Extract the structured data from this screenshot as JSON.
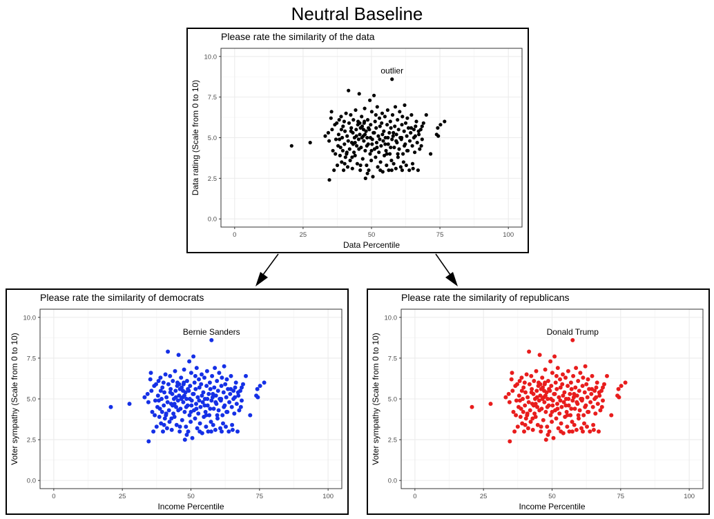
{
  "title": "Neutral Baseline",
  "colors": {
    "top": "#000000",
    "left": "#1530e6",
    "right": "#e81d1d",
    "grid": "#ebebeb"
  },
  "chart_data": [
    {
      "type": "scatter",
      "title": "Please rate the similarity of the data",
      "xlabel": "Data Percentile",
      "ylabel": "Data rating (Scale from 0 to 10)",
      "xlim": [
        -5,
        105
      ],
      "ylim": [
        -0.5,
        10.5
      ],
      "xticks": [
        "0",
        "25",
        "50",
        "75",
        "100"
      ],
      "yticks": [
        "0.0",
        "2.5",
        "5.0",
        "7.5",
        "10.0"
      ],
      "annotation": {
        "text": "outlier",
        "x": 57.5,
        "y": 8.6
      },
      "highlight_point": {
        "x": 57.5,
        "y": 8.6
      },
      "color": "#000000"
    },
    {
      "type": "scatter",
      "title": "Please rate the similarity of democrats",
      "xlabel": "Income Percentile",
      "ylabel": "Voter sympathy (Scale from 0 to 10)",
      "xlim": [
        -5,
        105
      ],
      "ylim": [
        -0.5,
        10.5
      ],
      "xticks": [
        "0",
        "25",
        "50",
        "75",
        "100"
      ],
      "yticks": [
        "0.0",
        "2.5",
        "5.0",
        "7.5",
        "10.0"
      ],
      "annotation": {
        "text": "Bernie Sanders",
        "x": 57.5,
        "y": 8.6
      },
      "highlight_point": {
        "x": 57.5,
        "y": 8.6
      },
      "color": "#1530e6"
    },
    {
      "type": "scatter",
      "title": "Please rate the similarity of republicans",
      "xlabel": "Income Percentile",
      "ylabel": "Voter sympathy (Scale from 0 to 10)",
      "xlim": [
        -5,
        105
      ],
      "ylim": [
        -0.5,
        10.5
      ],
      "xticks": [
        "0",
        "25",
        "50",
        "75",
        "100"
      ],
      "yticks": [
        "0.0",
        "2.5",
        "5.0",
        "7.5",
        "10.0"
      ],
      "annotation": {
        "text": "Donald Trump",
        "x": 57.5,
        "y": 8.6
      },
      "highlight_point": {
        "x": 57.5,
        "y": 8.6
      },
      "color": "#e81d1d"
    }
  ],
  "points": [
    [
      20.8,
      4.5
    ],
    [
      27.6,
      4.7
    ],
    [
      34.6,
      2.4
    ],
    [
      33.1,
      5.1
    ],
    [
      34.2,
      5.3
    ],
    [
      34.5,
      4.8
    ],
    [
      35.2,
      6.2
    ],
    [
      35.4,
      6.6
    ],
    [
      35.6,
      5.5
    ],
    [
      35.9,
      4.2
    ],
    [
      36.3,
      3.0
    ],
    [
      36.6,
      5.8
    ],
    [
      37.0,
      4.9
    ],
    [
      37.3,
      5.9
    ],
    [
      37.5,
      3.3
    ],
    [
      37.8,
      4.5
    ],
    [
      38.0,
      5.2
    ],
    [
      38.2,
      6.1
    ],
    [
      38.5,
      3.9
    ],
    [
      38.7,
      4.4
    ],
    [
      38.9,
      6.3
    ],
    [
      39.1,
      3.5
    ],
    [
      39.3,
      5.0
    ],
    [
      39.5,
      4.2
    ],
    [
      39.6,
      5.7
    ],
    [
      39.8,
      3.0
    ],
    [
      40.0,
      6.0
    ],
    [
      40.1,
      4.6
    ],
    [
      40.3,
      5.4
    ],
    [
      40.5,
      3.8
    ],
    [
      40.7,
      6.5
    ],
    [
      40.9,
      4.0
    ],
    [
      41.1,
      5.1
    ],
    [
      41.3,
      3.2
    ],
    [
      41.5,
      4.8
    ],
    [
      41.6,
      7.9
    ],
    [
      41.8,
      5.9
    ],
    [
      42.0,
      4.3
    ],
    [
      42.2,
      3.6
    ],
    [
      42.4,
      6.4
    ],
    [
      42.6,
      5.6
    ],
    [
      42.8,
      4.7
    ],
    [
      43.0,
      3.1
    ],
    [
      43.2,
      5.3
    ],
    [
      43.4,
      6.1
    ],
    [
      43.6,
      4.1
    ],
    [
      43.8,
      5.0
    ],
    [
      44.0,
      3.9
    ],
    [
      44.2,
      6.7
    ],
    [
      44.4,
      5.5
    ],
    [
      44.6,
      4.5
    ],
    [
      44.8,
      3.4
    ],
    [
      45.0,
      5.8
    ],
    [
      45.1,
      6.0
    ],
    [
      45.3,
      4.9
    ],
    [
      45.5,
      7.7
    ],
    [
      45.7,
      5.2
    ],
    [
      45.9,
      3.0
    ],
    [
      46.0,
      5.6
    ],
    [
      46.2,
      4.4
    ],
    [
      46.4,
      6.3
    ],
    [
      46.6,
      5.7
    ],
    [
      46.8,
      3.7
    ],
    [
      47.0,
      5.1
    ],
    [
      47.2,
      4.8
    ],
    [
      47.3,
      5.9
    ],
    [
      47.5,
      6.8
    ],
    [
      47.7,
      4.2
    ],
    [
      47.8,
      2.5
    ],
    [
      48.0,
      5.4
    ],
    [
      48.2,
      3.3
    ],
    [
      48.4,
      5.0
    ],
    [
      48.6,
      6.1
    ],
    [
      48.8,
      4.6
    ],
    [
      49.0,
      3.0
    ],
    [
      49.2,
      5.5
    ],
    [
      49.4,
      7.3
    ],
    [
      49.5,
      4.0
    ],
    [
      49.7,
      5.8
    ],
    [
      49.9,
      3.6
    ],
    [
      50.1,
      6.6
    ],
    [
      50.3,
      4.9
    ],
    [
      50.5,
      2.6
    ],
    [
      50.7,
      5.3
    ],
    [
      50.9,
      7.6
    ],
    [
      51.1,
      4.3
    ],
    [
      51.3,
      6.0
    ],
    [
      51.5,
      3.8
    ],
    [
      51.7,
      5.6
    ],
    [
      51.9,
      4.7
    ],
    [
      52.1,
      6.9
    ],
    [
      52.3,
      3.2
    ],
    [
      52.5,
      5.1
    ],
    [
      52.7,
      4.1
    ],
    [
      52.9,
      6.2
    ],
    [
      53.1,
      5.7
    ],
    [
      53.3,
      3.5
    ],
    [
      53.5,
      4.5
    ],
    [
      53.7,
      5.9
    ],
    [
      53.9,
      6.5
    ],
    [
      54.1,
      2.9
    ],
    [
      54.3,
      4.8
    ],
    [
      54.5,
      5.4
    ],
    [
      54.7,
      3.9
    ],
    [
      54.9,
      6.3
    ],
    [
      55.1,
      5.0
    ],
    [
      55.3,
      4.2
    ],
    [
      55.5,
      3.3
    ],
    [
      55.7,
      5.8
    ],
    [
      55.9,
      6.7
    ],
    [
      56.1,
      4.6
    ],
    [
      56.3,
      3.0
    ],
    [
      56.5,
      5.3
    ],
    [
      56.7,
      4.0
    ],
    [
      56.9,
      6.0
    ],
    [
      57.1,
      5.6
    ],
    [
      57.3,
      3.6
    ],
    [
      57.5,
      4.9
    ],
    [
      57.7,
      6.4
    ],
    [
      57.9,
      5.1
    ],
    [
      58.1,
      3.4
    ],
    [
      58.3,
      4.4
    ],
    [
      58.5,
      5.7
    ],
    [
      58.7,
      6.9
    ],
    [
      58.9,
      3.1
    ],
    [
      59.1,
      5.2
    ],
    [
      59.3,
      4.7
    ],
    [
      59.5,
      6.1
    ],
    [
      59.7,
      3.8
    ],
    [
      59.9,
      5.5
    ],
    [
      60.1,
      4.3
    ],
    [
      60.3,
      6.6
    ],
    [
      60.5,
      5.0
    ],
    [
      60.7,
      3.2
    ],
    [
      60.9,
      4.9
    ],
    [
      61.1,
      5.8
    ],
    [
      61.3,
      6.3
    ],
    [
      61.5,
      4.0
    ],
    [
      61.7,
      3.5
    ],
    [
      61.9,
      5.4
    ],
    [
      62.1,
      7.0
    ],
    [
      62.3,
      4.6
    ],
    [
      62.5,
      5.9
    ],
    [
      62.7,
      3.3
    ],
    [
      62.9,
      5.1
    ],
    [
      63.1,
      6.2
    ],
    [
      63.3,
      4.2
    ],
    [
      63.5,
      5.6
    ],
    [
      63.8,
      3.0
    ],
    [
      64.0,
      4.8
    ],
    [
      64.3,
      5.3
    ],
    [
      64.6,
      6.4
    ],
    [
      64.9,
      4.5
    ],
    [
      65.2,
      3.1
    ],
    [
      65.5,
      5.0
    ],
    [
      65.8,
      4.1
    ],
    [
      66.1,
      5.7
    ],
    [
      66.4,
      6.0
    ],
    [
      66.7,
      4.7
    ],
    [
      67.0,
      3.0
    ],
    [
      67.3,
      5.2
    ],
    [
      67.6,
      4.3
    ],
    [
      68.0,
      5.5
    ],
    [
      68.5,
      4.9
    ],
    [
      69.0,
      5.9
    ],
    [
      70.0,
      6.4
    ],
    [
      71.6,
      4.0
    ],
    [
      73.8,
      5.2
    ],
    [
      74.2,
      5.6
    ],
    [
      74.4,
      5.1
    ],
    [
      75.2,
      5.8
    ],
    [
      76.7,
      6.0
    ],
    [
      36.8,
      4.0
    ],
    [
      39.0,
      5.5
    ],
    [
      41.0,
      4.1
    ],
    [
      43.3,
      4.6
    ],
    [
      44.5,
      5.1
    ],
    [
      45.4,
      4.3
    ],
    [
      46.5,
      5.0
    ],
    [
      47.1,
      5.5
    ],
    [
      47.6,
      5.2
    ],
    [
      48.3,
      4.5
    ],
    [
      48.9,
      5.6
    ],
    [
      49.6,
      5.0
    ],
    [
      50.2,
      4.6
    ],
    [
      51.0,
      5.3
    ],
    [
      52.0,
      4.4
    ],
    [
      53.0,
      4.9
    ],
    [
      54.0,
      5.2
    ],
    [
      55.0,
      4.6
    ],
    [
      56.0,
      5.0
    ],
    [
      57.0,
      4.4
    ],
    [
      58.0,
      5.3
    ],
    [
      59.0,
      4.8
    ],
    [
      61.0,
      5.0
    ],
    [
      62.0,
      4.5
    ],
    [
      64.5,
      5.6
    ],
    [
      65.5,
      5.5
    ],
    [
      67.2,
      5.4
    ],
    [
      68.5,
      5.7
    ],
    [
      38.3,
      4.9
    ],
    [
      40.2,
      3.4
    ],
    [
      42.5,
      5.4
    ],
    [
      44.0,
      4.7
    ],
    [
      46.0,
      3.3
    ],
    [
      47.4,
      6.0
    ],
    [
      48.5,
      2.8
    ],
    [
      50.0,
      4.2
    ],
    [
      51.6,
      6.4
    ],
    [
      53.2,
      3.0
    ],
    [
      55.6,
      4.0
    ],
    [
      57.4,
      3.0
    ],
    [
      59.6,
      4.0
    ],
    [
      61.2,
      3.0
    ],
    [
      63.0,
      4.2
    ],
    [
      65.0,
      3.4
    ],
    [
      66.0,
      5.1
    ],
    [
      68.2,
      4.5
    ],
    [
      42.9,
      3.8
    ],
    [
      45.7,
      5.9
    ]
  ]
}
